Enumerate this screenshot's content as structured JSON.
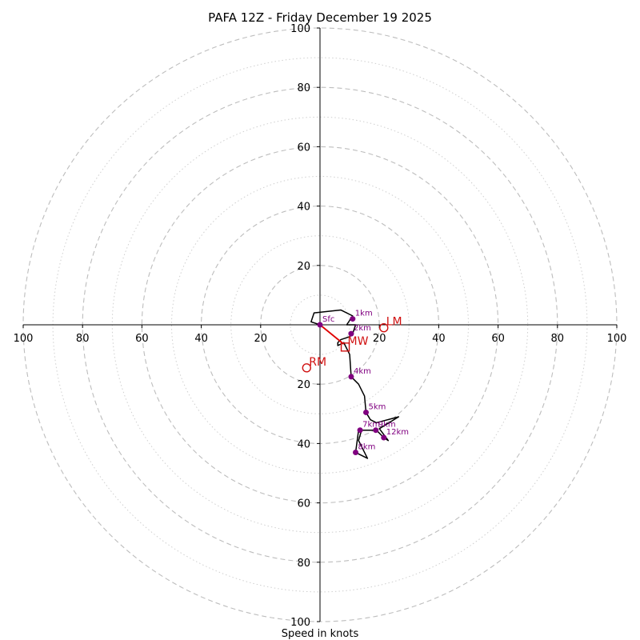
{
  "chart_data": {
    "type": "hodograph",
    "title": "PAFA 12Z - Friday December 19 2025",
    "xlabel": "Speed in knots",
    "range": 100,
    "rings_major": [
      20,
      40,
      60,
      80,
      100
    ],
    "rings_minor": [
      10,
      30,
      50,
      70,
      90
    ],
    "ticks": {
      "left": [
        "100",
        "80",
        "60",
        "40",
        "20"
      ],
      "right": [
        "20",
        "40",
        "60",
        "80",
        "100"
      ],
      "top": [
        "100",
        "80",
        "60",
        "40",
        "20"
      ],
      "bottom": [
        "20",
        "40",
        "60",
        "80",
        "100"
      ]
    },
    "trace": [
      [
        0,
        0
      ],
      [
        -3,
        1
      ],
      [
        -2,
        4
      ],
      [
        7,
        5
      ],
      [
        11,
        3
      ],
      [
        9,
        0
      ],
      [
        12,
        0
      ],
      [
        11,
        -3
      ],
      [
        10,
        -4
      ],
      [
        7,
        -5
      ],
      [
        6,
        -6
      ],
      [
        6,
        -7
      ],
      [
        8,
        -6
      ],
      [
        10,
        -10
      ],
      [
        10.5,
        -17.5
      ],
      [
        13,
        -20
      ],
      [
        15,
        -24
      ],
      [
        15.5,
        -29.5
      ],
      [
        17,
        -32
      ],
      [
        19,
        -33
      ],
      [
        26.5,
        -31
      ],
      [
        20,
        -35
      ],
      [
        23,
        -39
      ],
      [
        21.5,
        -38
      ],
      [
        19,
        -35.5
      ],
      [
        14,
        -35.5
      ],
      [
        13,
        -39
      ],
      [
        16,
        -45
      ],
      [
        12,
        -43
      ],
      [
        13,
        -35.5
      ]
    ],
    "levels": [
      {
        "label": "Sfc",
        "u": 0,
        "v": 0
      },
      {
        "label": "1km",
        "u": 11,
        "v": 2
      },
      {
        "label": "2km",
        "u": 10.5,
        "v": -3
      },
      {
        "label": "4km",
        "u": 10.5,
        "v": -17.5
      },
      {
        "label": "5km",
        "u": 15.5,
        "v": -29.5
      },
      {
        "label": "7km",
        "u": 13.5,
        "v": -35.5
      },
      {
        "label": "8km",
        "u": 12,
        "v": -43
      },
      {
        "label": "9km",
        "u": 18.8,
        "v": -35.5
      },
      {
        "label": "12km",
        "u": 21.5,
        "v": -38
      }
    ],
    "markers": [
      {
        "label": "LM",
        "u": 21.5,
        "v": -1,
        "shape": "circle"
      },
      {
        "label": "MW",
        "u": 8.5,
        "v": -7.5,
        "shape": "square"
      },
      {
        "label": "RM",
        "u": -4.5,
        "v": -14.5,
        "shape": "circle"
      }
    ],
    "shear_vector": {
      "from_u": 0,
      "from_v": 0,
      "to_u": 8,
      "to_v": -6.5
    },
    "colors": {
      "trace": "#000000",
      "levels": "#800080",
      "markers": "#d01010",
      "grid": "#bdbdbd"
    }
  }
}
